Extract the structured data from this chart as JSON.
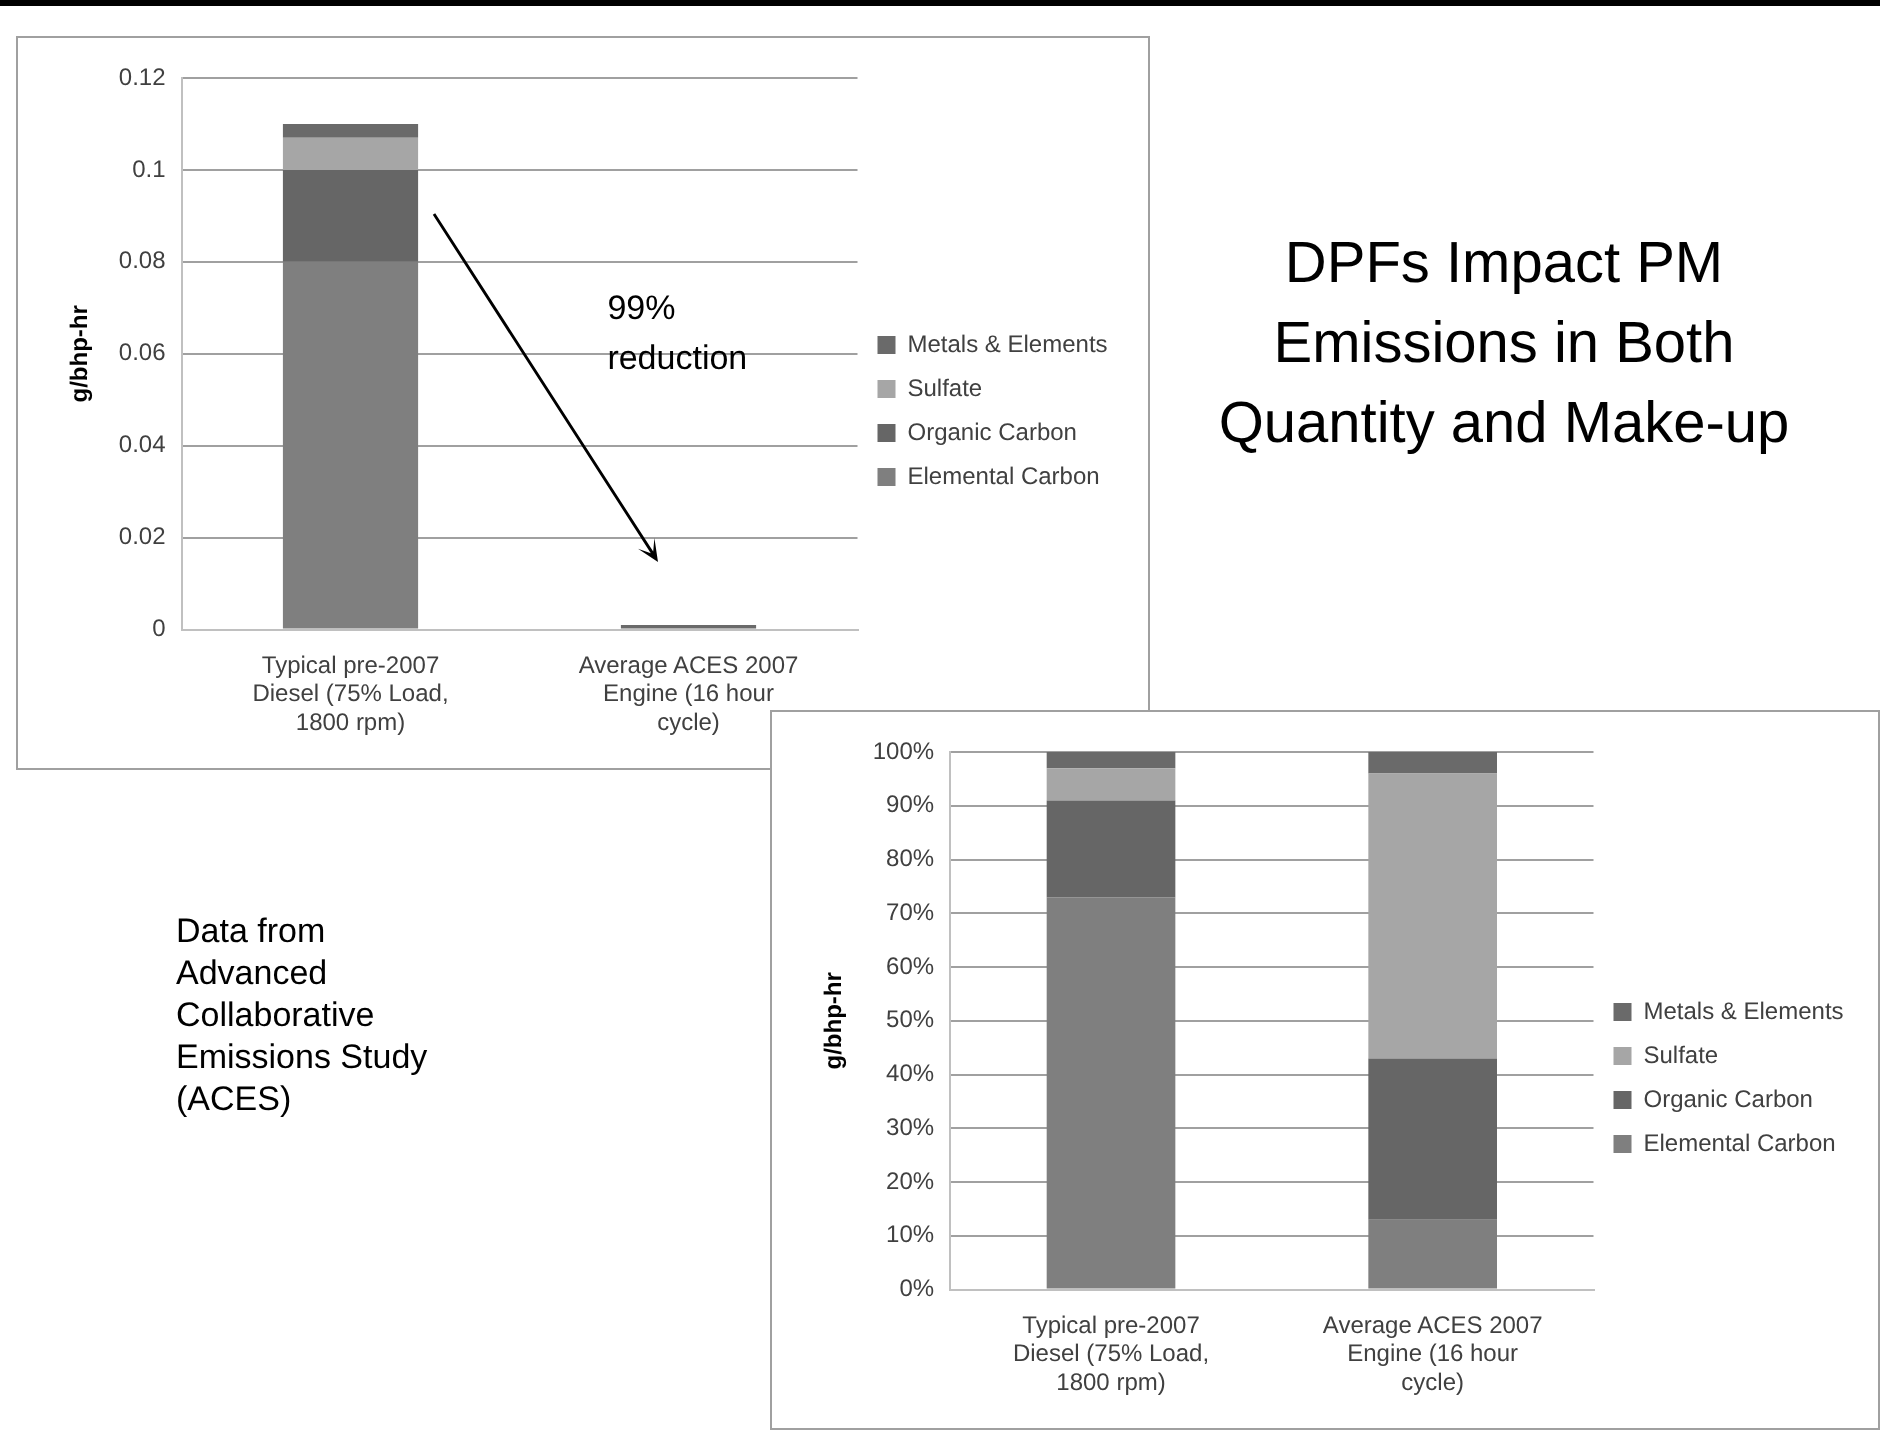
{
  "chart_data": [
    {
      "type": "bar",
      "stacked": true,
      "ylabel": "g/bhp-hr",
      "categories": [
        "Typical pre-2007 Diesel (75% Load, 1800 rpm)",
        "Average ACES 2007 Engine (16 hour cycle)"
      ],
      "series": [
        {
          "name": "Elemental Carbon",
          "color": "#7f7f7f",
          "values": [
            0.08,
            null
          ]
        },
        {
          "name": "Organic Carbon",
          "color": "#666666",
          "values": [
            0.02,
            null
          ]
        },
        {
          "name": "Sulfate",
          "color": "#a6a6a6",
          "values": [
            0.007,
            null
          ]
        },
        {
          "name": "Metals & Elements",
          "color": "#6a6a6a",
          "values": [
            0.003,
            0.001
          ]
        }
      ],
      "ylim": [
        0,
        0.12
      ],
      "yticks": [
        0,
        0.02,
        0.04,
        0.06,
        0.08,
        0.1,
        0.12
      ],
      "grid": "y",
      "legend": "right",
      "annotations": [
        "99% reduction"
      ]
    },
    {
      "type": "bar",
      "stacked": true,
      "ylabel": "g/bhp-hr",
      "categories": [
        "Typical pre-2007 Diesel (75% Load, 1800 rpm)",
        "Average ACES 2007 Engine (16 hour cycle)"
      ],
      "series": [
        {
          "name": "Elemental Carbon",
          "color": "#7f7f7f",
          "values": [
            73,
            13
          ]
        },
        {
          "name": "Organic Carbon",
          "color": "#666666",
          "values": [
            18,
            30
          ]
        },
        {
          "name": "Sulfate",
          "color": "#a6a6a6",
          "values": [
            6,
            53
          ]
        },
        {
          "name": "Metals & Elements",
          "color": "#6a6a6a",
          "values": [
            3,
            4
          ]
        }
      ],
      "ylim": [
        0,
        100
      ],
      "yticks": [
        {
          "value": 0,
          "label": "0%"
        },
        {
          "value": 10,
          "label": "10%"
        },
        {
          "value": 20,
          "label": "20%"
        },
        {
          "value": 30,
          "label": "30%"
        },
        {
          "value": 40,
          "label": "40%"
        },
        {
          "value": 50,
          "label": "50%"
        },
        {
          "value": 60,
          "label": "60%"
        },
        {
          "value": 70,
          "label": "70%"
        },
        {
          "value": 80,
          "label": "80%"
        },
        {
          "value": 90,
          "label": "90%"
        },
        {
          "value": 100,
          "label": "100%"
        }
      ],
      "grid": "y",
      "legend": "right"
    },
    {
      "type": "other",
      "title": "DPFs Impact PM Emissions in Both Quantity and Make-up",
      "annotations": [
        "Data from Advanced Collaborative Emissions Study (ACES)"
      ]
    }
  ]
}
